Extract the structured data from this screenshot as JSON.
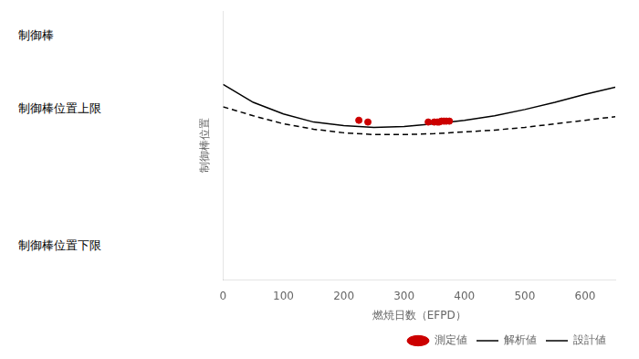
{
  "chart_data": {
    "type": "line",
    "annotations": [
      "制御棒",
      "制御棒位置上限",
      "制御棒位置下限"
    ],
    "xlabel": "燃焼日数（EFPD）",
    "ylabel": "制御棒位置",
    "xlim": [
      0,
      650
    ],
    "xticks": [
      0,
      100,
      200,
      300,
      400,
      500,
      600
    ],
    "ylim": [
      0.55,
      0.85
    ],
    "yticks": [],
    "grid": false,
    "legend": "lower right",
    "tick_labels": "x",
    "series": [
      {
        "name": "測定値",
        "type": "scatter",
        "marker": "o",
        "color": "#cc0000",
        "x": [
          225,
          240,
          340,
          350,
          355,
          358,
          362,
          366,
          370,
          375
        ],
        "values": [
          0.728,
          0.726,
          0.726,
          0.726,
          0.726,
          0.726,
          0.727,
          0.727,
          0.727,
          0.727
        ]
      },
      {
        "name": "解析値",
        "type": "line",
        "line_style": "solid",
        "color": "#000000",
        "x": [
          0,
          50,
          100,
          150,
          200,
          250,
          300,
          350,
          400,
          450,
          500,
          550,
          600,
          650
        ],
        "values": [
          0.768,
          0.748,
          0.735,
          0.726,
          0.722,
          0.72,
          0.721,
          0.724,
          0.728,
          0.733,
          0.74,
          0.748,
          0.757,
          0.765
        ]
      },
      {
        "name": "設計値",
        "type": "line",
        "line_style": "dashed",
        "color": "#000000",
        "x": [
          0,
          50,
          100,
          150,
          200,
          250,
          300,
          350,
          400,
          450,
          500,
          550,
          600,
          650
        ],
        "values": [
          0.743,
          0.733,
          0.724,
          0.718,
          0.714,
          0.712,
          0.712,
          0.713,
          0.715,
          0.717,
          0.72,
          0.724,
          0.728,
          0.732
        ]
      }
    ]
  }
}
